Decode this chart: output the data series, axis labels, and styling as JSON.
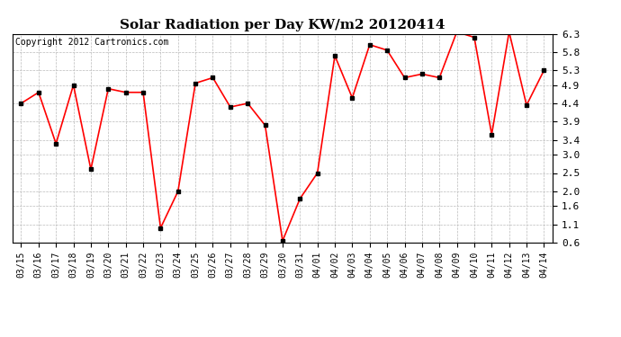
{
  "title": "Solar Radiation per Day KW/m2 20120414",
  "copyright": "Copyright 2012 Cartronics.com",
  "dates": [
    "03/15",
    "03/16",
    "03/17",
    "03/18",
    "03/19",
    "03/20",
    "03/21",
    "03/22",
    "03/23",
    "03/24",
    "03/25",
    "03/26",
    "03/27",
    "03/28",
    "03/29",
    "03/30",
    "03/31",
    "04/01",
    "04/02",
    "04/03",
    "04/04",
    "04/05",
    "04/06",
    "04/07",
    "04/08",
    "04/09",
    "04/10",
    "04/11",
    "04/12",
    "04/13",
    "04/14"
  ],
  "values": [
    4.4,
    4.7,
    3.3,
    4.9,
    2.6,
    4.8,
    4.7,
    4.7,
    1.0,
    2.0,
    4.95,
    5.1,
    4.3,
    4.4,
    3.8,
    0.65,
    1.8,
    2.5,
    5.7,
    4.55,
    6.0,
    5.85,
    5.1,
    5.2,
    5.1,
    6.35,
    6.2,
    3.55,
    6.35,
    4.35,
    5.3
  ],
  "line_color": "#ff0000",
  "marker": "s",
  "marker_size": 2.5,
  "marker_color": "#000000",
  "background_color": "#ffffff",
  "grid_color": "#bbbbbb",
  "ylim": [
    0.6,
    6.3
  ],
  "yticks": [
    0.6,
    1.1,
    1.6,
    2.0,
    2.5,
    3.0,
    3.4,
    3.9,
    4.4,
    4.9,
    5.3,
    5.8,
    6.3
  ],
  "title_fontsize": 11,
  "copyright_fontsize": 7,
  "tick_fontsize": 7,
  "ytick_fontsize": 8
}
